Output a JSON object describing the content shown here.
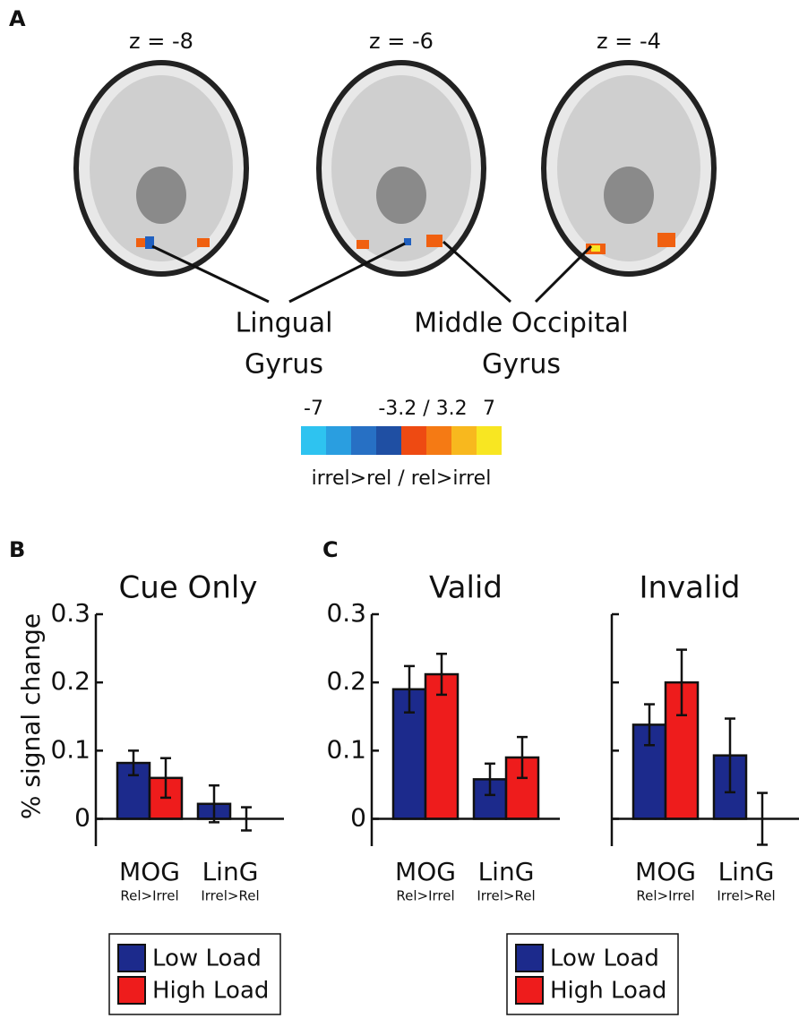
{
  "panel_labels": [
    "A",
    "B",
    "C"
  ],
  "brain_slices": [
    "z = -8",
    "z = -6",
    "z = -4"
  ],
  "regions": [
    {
      "lines": [
        "Lingual",
        "Gyrus"
      ]
    },
    {
      "lines": [
        "Middle Occipital",
        "Gyrus"
      ]
    }
  ],
  "colorbar": {
    "labels": [
      "-7",
      "-3.2 / 3.2",
      "7"
    ],
    "caption": "irrel>rel / rel>irrel",
    "colors": [
      "#2ec3f0",
      "#2a9ee0",
      "#2770c4",
      "#1f4fa3",
      "#ee4a12",
      "#f57a14",
      "#f8b81e",
      "#f8e622"
    ]
  },
  "chart_data": [
    {
      "type": "bar",
      "title": "Cue Only",
      "ylabel": "% signal change",
      "categories": [
        "MOG",
        "LinG"
      ],
      "category_sublabels": [
        "Rel>Irrel",
        "Irrel>Rel"
      ],
      "series": [
        {
          "name": "Low Load",
          "color": "#1c2a8c",
          "values": [
            0.082,
            0.022
          ],
          "errors": [
            0.018,
            0.027
          ]
        },
        {
          "name": "High Load",
          "color": "#ee1c1c",
          "values": [
            0.06,
            0.0
          ],
          "errors": [
            0.029,
            0.017
          ]
        }
      ],
      "ylim": [
        -0.04,
        0.3
      ],
      "yticks": [
        0,
        0.1,
        0.2,
        0.3
      ],
      "show_ytick_labels": true,
      "legend": true
    },
    {
      "type": "bar",
      "title": "Valid",
      "categories": [
        "MOG",
        "LinG"
      ],
      "category_sublabels": [
        "Rel>Irrel",
        "Irrel>Rel"
      ],
      "series": [
        {
          "name": "Low Load",
          "color": "#1c2a8c",
          "values": [
            0.19,
            0.058
          ],
          "errors": [
            0.034,
            0.023
          ]
        },
        {
          "name": "High Load",
          "color": "#ee1c1c",
          "values": [
            0.212,
            0.09
          ],
          "errors": [
            0.03,
            0.03
          ]
        }
      ],
      "ylim": [
        -0.04,
        0.3
      ],
      "yticks": [
        0,
        0.1,
        0.2,
        0.3
      ],
      "show_ytick_labels": true,
      "legend": true
    },
    {
      "type": "bar",
      "title": "Invalid",
      "categories": [
        "MOG",
        "LinG"
      ],
      "category_sublabels": [
        "Rel>Irrel",
        "Irrel>Rel"
      ],
      "series": [
        {
          "color": "#1c2a8c",
          "values": [
            0.138,
            0.093
          ],
          "errors": [
            0.03,
            0.054
          ]
        },
        {
          "color": "#ee1c1c",
          "values": [
            0.2,
            0.0
          ],
          "errors": [
            0.048,
            0.038
          ]
        }
      ],
      "ylim": [
        -0.04,
        0.3
      ],
      "yticks": [
        0,
        0.1,
        0.2,
        0.3
      ],
      "show_ytick_labels": false,
      "legend": false
    }
  ]
}
